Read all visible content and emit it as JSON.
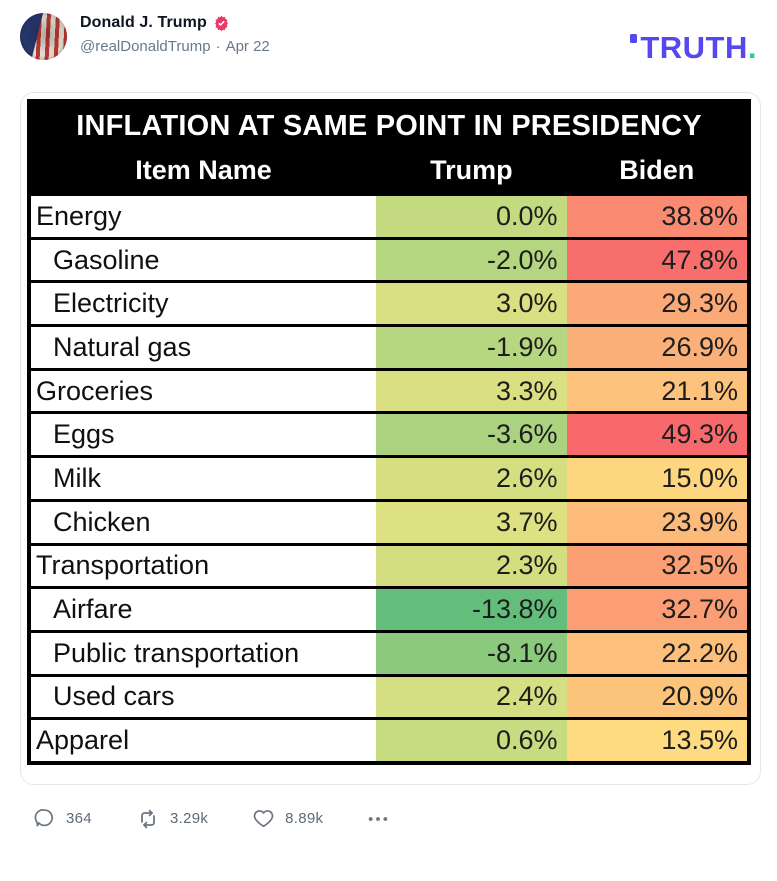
{
  "header": {
    "author": "Donald J. Trump",
    "handle": "@realDonaldTrump",
    "separator": "·",
    "date": "Apr 22",
    "brand": {
      "text": "TRUTH",
      "dot": "."
    }
  },
  "table": {
    "title": "INFLATION AT SAME POINT IN PRESIDENCY",
    "columns": {
      "item": "Item Name",
      "trump": "Trump",
      "biden": "Biden"
    },
    "rows": [
      {
        "item": "Energy",
        "indent": false,
        "trump": "0.0%",
        "biden": "38.8%",
        "trump_color": "#c3da81",
        "biden_color": "#fa8a71"
      },
      {
        "item": "Gasoline",
        "indent": true,
        "trump": "-2.0%",
        "biden": "47.8%",
        "trump_color": "#b5d680",
        "biden_color": "#f86e6c"
      },
      {
        "item": "Electricity",
        "indent": true,
        "trump": "3.0%",
        "biden": "29.3%",
        "trump_color": "#d8e082",
        "biden_color": "#fba977"
      },
      {
        "item": "Natural gas",
        "indent": true,
        "trump": "-1.9%",
        "biden": "26.9%",
        "trump_color": "#b6d680",
        "biden_color": "#fcb079"
      },
      {
        "item": "Groceries",
        "indent": false,
        "trump": "3.3%",
        "biden": "21.1%",
        "trump_color": "#dae082",
        "biden_color": "#fdc37c"
      },
      {
        "item": "Eggs",
        "indent": true,
        "trump": "-3.6%",
        "biden": "49.3%",
        "trump_color": "#aad27f",
        "biden_color": "#f8696b"
      },
      {
        "item": "Milk",
        "indent": true,
        "trump": "2.6%",
        "biden": "15.0%",
        "trump_color": "#d5df82",
        "biden_color": "#fed680"
      },
      {
        "item": "Chicken",
        "indent": true,
        "trump": "3.7%",
        "biden": "23.9%",
        "trump_color": "#dde182",
        "biden_color": "#fcba7b"
      },
      {
        "item": "Transportation",
        "indent": false,
        "trump": "2.3%",
        "biden": "32.5%",
        "trump_color": "#d3de81",
        "biden_color": "#fb9f75"
      },
      {
        "item": "Airfare",
        "indent": true,
        "trump": "-13.8%",
        "biden": "32.7%",
        "trump_color": "#63be7b",
        "biden_color": "#fb9e75"
      },
      {
        "item": "Public transportation",
        "indent": true,
        "trump": "-8.1%",
        "biden": "22.2%",
        "trump_color": "#8bc97d",
        "biden_color": "#fdc07c"
      },
      {
        "item": "Used cars",
        "indent": true,
        "trump": "2.4%",
        "biden": "20.9%",
        "trump_color": "#d4de82",
        "biden_color": "#fdc47c"
      },
      {
        "item": "Apparel",
        "indent": false,
        "trump": "0.6%",
        "biden": "13.5%",
        "trump_color": "#c7db81",
        "biden_color": "#fedb81"
      }
    ]
  },
  "footer": {
    "replies": "364",
    "reposts": "3.29k",
    "likes": "8.89k"
  },
  "icons": {
    "verified": "verified-seal-icon",
    "replies": "comment-icon",
    "reposts": "repost-icon",
    "likes": "heart-icon",
    "more": "ellipsis-icon"
  },
  "colors": {
    "brand": "#5448ee",
    "brand_dot": "#1fcfa2",
    "verified_badge": "#ea3a66",
    "table_header_bg": "#000000",
    "table_header_text": "#ffffff",
    "action_icon": "#6b7682"
  }
}
